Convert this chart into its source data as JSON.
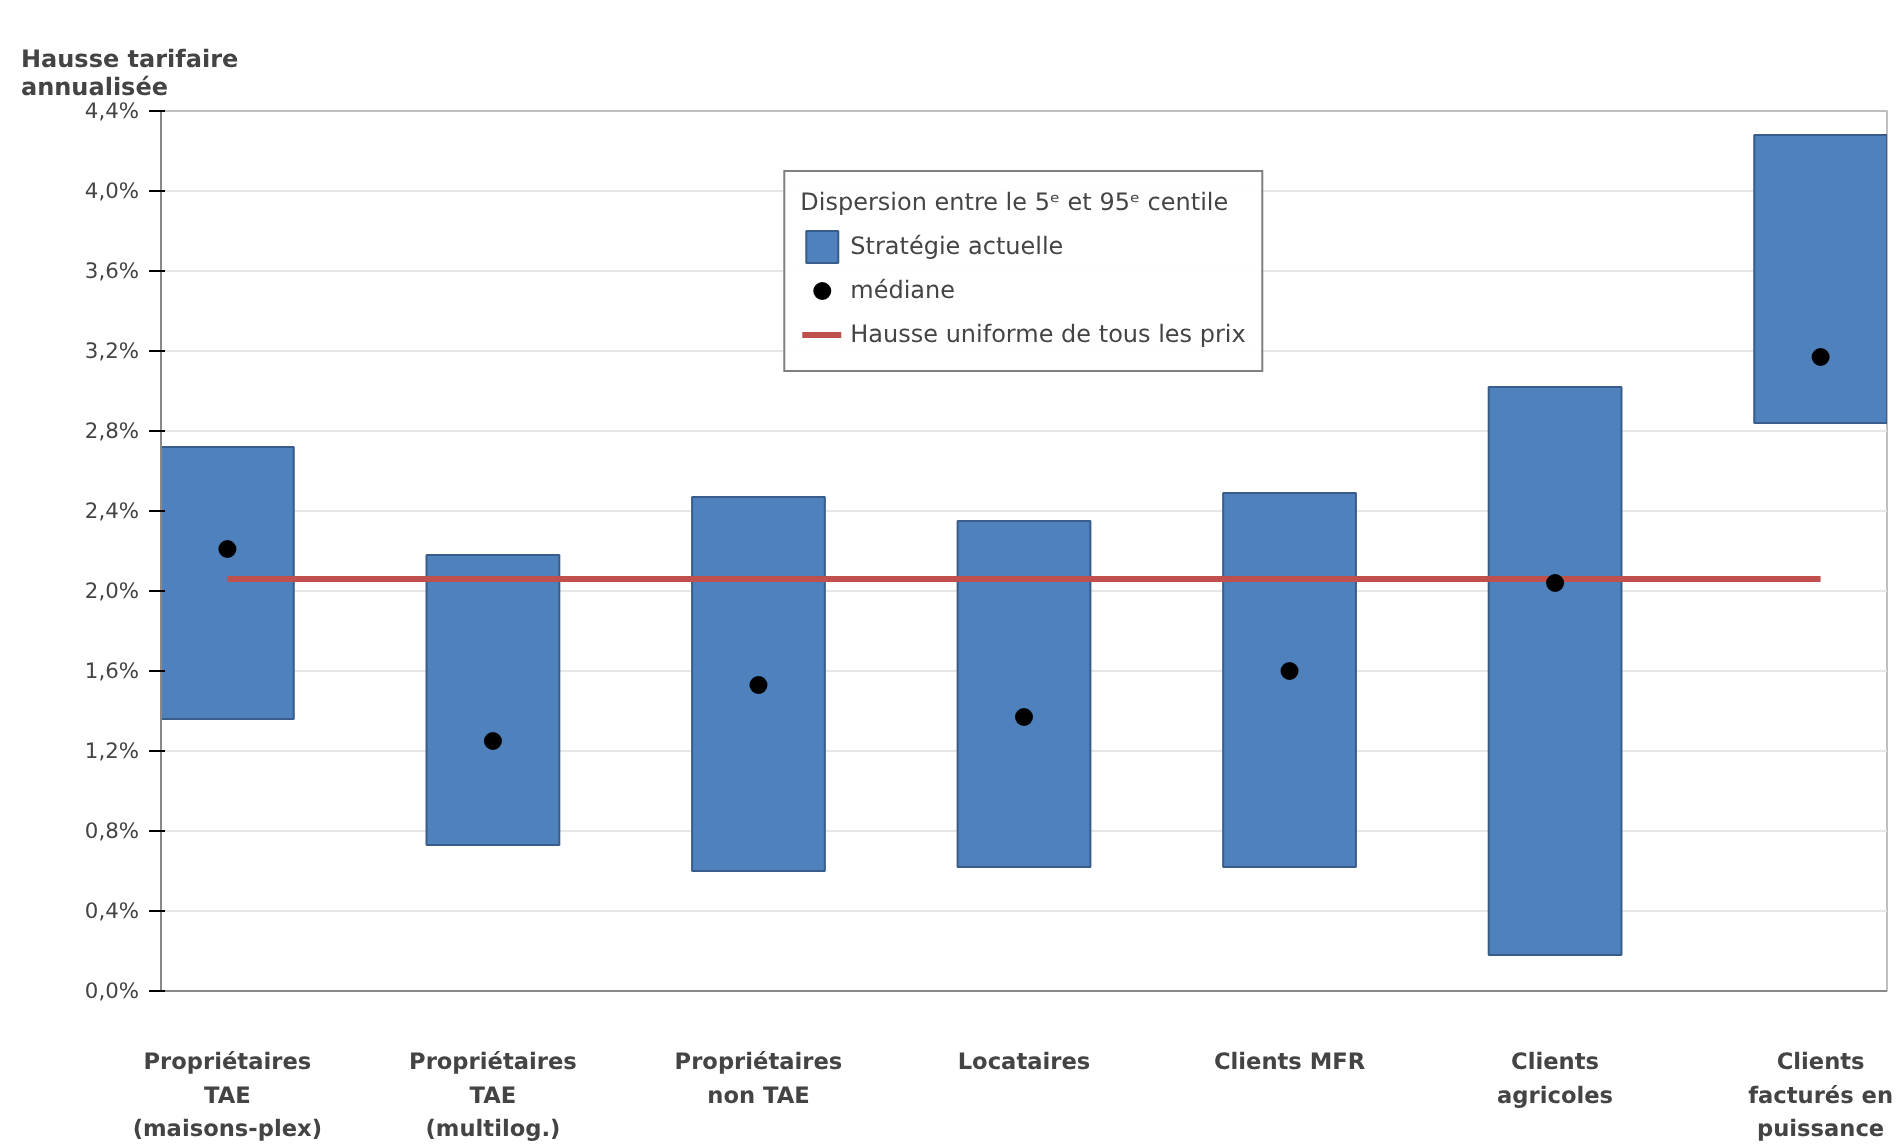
{
  "chart_data": {
    "type": "bar",
    "ylabel": "Hausse tarifaire annualisée",
    "legend_title": "Dispersion entre le 5ᵉ et 95ᵉ centile",
    "categories": [
      "Propriétaires TAE (maisons-plex)",
      "Propriétaires TAE (multilog.)",
      "Propriétaires non TAE",
      "Locataires",
      "Clients MFR",
      "Clients agricoles",
      "Clients facturés en puissance"
    ],
    "series": [
      {
        "name": "Stratégie actuelle",
        "color": "#4f81bd",
        "base": [
          1.36,
          0.73,
          0.6,
          0.62,
          0.62,
          0.18,
          2.84
        ],
        "values": [
          1.36,
          1.45,
          1.87,
          1.73,
          1.87,
          2.84,
          1.44
        ]
      },
      {
        "name": "médiane",
        "type": "scatter",
        "marker": "circle",
        "color": "#000000",
        "values": [
          2.21,
          1.25,
          1.53,
          1.37,
          1.6,
          2.04,
          3.17
        ]
      },
      {
        "name": "Hausse uniforme de tous les prix",
        "type": "line",
        "color": "#c0504d",
        "values": [
          2.06,
          2.06,
          2.06,
          2.06,
          2.06,
          2.06,
          2.06
        ]
      }
    ],
    "ylim": [
      0,
      4.4
    ],
    "yticks": [
      {
        "value": 0,
        "label": "0,0%"
      },
      {
        "value": 0.4,
        "label": "0,4%"
      },
      {
        "value": 0.8,
        "label": "0,8%"
      },
      {
        "value": 1.2,
        "label": "1,2%"
      },
      {
        "value": 1.6,
        "label": "1,6%"
      },
      {
        "value": 2.0,
        "label": "2,0%"
      },
      {
        "value": 2.4,
        "label": "2,4%"
      },
      {
        "value": 2.8,
        "label": "2,8%"
      },
      {
        "value": 3.2,
        "label": "3,2%"
      },
      {
        "value": 3.6,
        "label": "3,6%"
      },
      {
        "value": 4.0,
        "label": "4,0%"
      },
      {
        "value": 4.4,
        "label": "4,4%"
      }
    ],
    "grid": "y",
    "legend": "top"
  }
}
